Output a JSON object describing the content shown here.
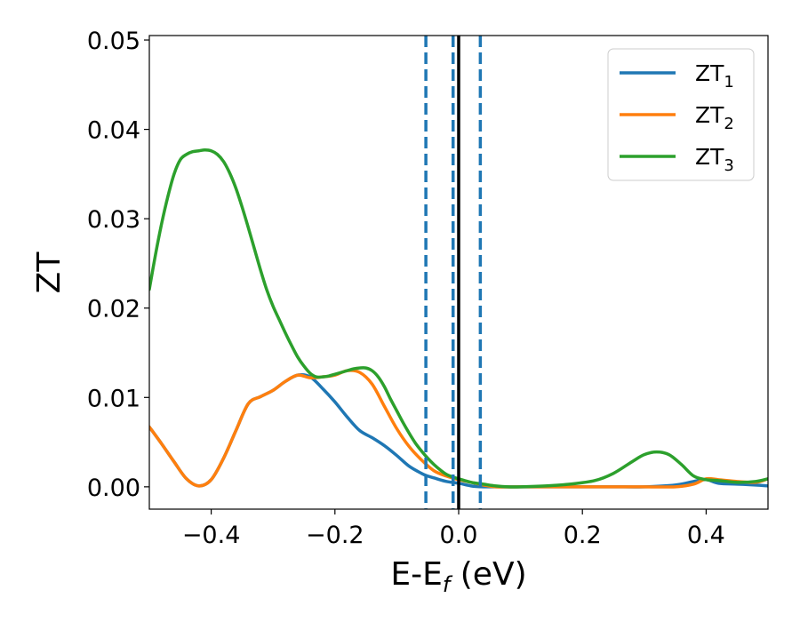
{
  "chart_data": {
    "type": "line",
    "xlabel": {
      "main": "E-E",
      "sub": "f",
      "suffix": " (eV)"
    },
    "ylabel": "ZT",
    "xlim": [
      -0.5,
      0.5
    ],
    "ylim": [
      -0.0025,
      0.0505
    ],
    "xticks": [
      {
        "value": -0.4,
        "label": "−0.4"
      },
      {
        "value": -0.2,
        "label": "−0.2"
      },
      {
        "value": 0.0,
        "label": "0.0"
      },
      {
        "value": 0.2,
        "label": "0.2"
      },
      {
        "value": 0.4,
        "label": "0.4"
      }
    ],
    "yticks": [
      {
        "value": 0.0,
        "label": "0.00"
      },
      {
        "value": 0.01,
        "label": "0.01"
      },
      {
        "value": 0.02,
        "label": "0.02"
      },
      {
        "value": 0.03,
        "label": "0.03"
      },
      {
        "value": 0.04,
        "label": "0.04"
      },
      {
        "value": 0.05,
        "label": "0.05"
      }
    ],
    "grid": false,
    "legend_position": "top-right",
    "vlines": [
      {
        "x": 0.0,
        "style": "solid",
        "color": "#000000"
      },
      {
        "x": -0.053,
        "style": "dashed",
        "color": "#1f77b4"
      },
      {
        "x": -0.009,
        "style": "dashed",
        "color": "#1f77b4"
      },
      {
        "x": 0.035,
        "style": "dashed",
        "color": "#1f77b4"
      }
    ],
    "series": [
      {
        "name": "ZT",
        "sub": "1",
        "color": "#1f77b4",
        "x": [
          -0.5,
          -0.48,
          -0.46,
          -0.44,
          -0.42,
          -0.4,
          -0.38,
          -0.36,
          -0.34,
          -0.32,
          -0.3,
          -0.28,
          -0.26,
          -0.24,
          -0.22,
          -0.2,
          -0.18,
          -0.16,
          -0.14,
          -0.12,
          -0.1,
          -0.08,
          -0.06,
          -0.05,
          -0.04,
          -0.02,
          0.0,
          0.02,
          0.04,
          0.06,
          0.1,
          0.15,
          0.2,
          0.25,
          0.3,
          0.35,
          0.38,
          0.4,
          0.42,
          0.45,
          0.48,
          0.5
        ],
        "y": [
          0.0067,
          0.0048,
          0.0028,
          0.0009,
          0.0001,
          0.0008,
          0.0032,
          0.0063,
          0.0093,
          0.0101,
          0.0108,
          0.0118,
          0.0125,
          0.0123,
          0.011,
          0.0095,
          0.0078,
          0.0063,
          0.0055,
          0.0046,
          0.0035,
          0.0023,
          0.0015,
          0.0012,
          0.001,
          0.0006,
          0.0004,
          0.0001,
          0.0,
          0.0,
          0.0,
          0.0,
          0.0,
          0.0,
          0.0,
          0.0002,
          0.0006,
          0.0008,
          0.0004,
          0.0003,
          0.0002,
          0.0001
        ]
      },
      {
        "name": "ZT",
        "sub": "2",
        "color": "#ff7f0e",
        "x": [
          -0.5,
          -0.48,
          -0.46,
          -0.44,
          -0.42,
          -0.4,
          -0.38,
          -0.36,
          -0.34,
          -0.32,
          -0.3,
          -0.28,
          -0.26,
          -0.24,
          -0.22,
          -0.2,
          -0.18,
          -0.16,
          -0.14,
          -0.12,
          -0.1,
          -0.08,
          -0.06,
          -0.04,
          -0.02,
          0.0,
          0.02,
          0.04,
          0.06,
          0.1,
          0.15,
          0.2,
          0.25,
          0.3,
          0.35,
          0.38,
          0.4,
          0.42,
          0.45,
          0.48,
          0.5
        ],
        "y": [
          0.0067,
          0.0048,
          0.0028,
          0.0009,
          0.0001,
          0.0008,
          0.0032,
          0.0063,
          0.0093,
          0.0101,
          0.0108,
          0.0118,
          0.0125,
          0.0122,
          0.0123,
          0.0125,
          0.013,
          0.0128,
          0.0115,
          0.009,
          0.0065,
          0.0045,
          0.003,
          0.0018,
          0.0012,
          0.0008,
          0.0005,
          0.0002,
          0.0,
          0.0,
          0.0,
          0.0,
          0.0,
          0.0,
          0.0,
          0.0003,
          0.0009,
          0.0008,
          0.0006,
          0.0005,
          0.0009
        ]
      },
      {
        "name": "ZT",
        "sub": "3",
        "color": "#2ca02c",
        "x": [
          -0.5,
          -0.49,
          -0.48,
          -0.47,
          -0.46,
          -0.45,
          -0.44,
          -0.43,
          -0.42,
          -0.41,
          -0.4,
          -0.39,
          -0.38,
          -0.37,
          -0.36,
          -0.35,
          -0.34,
          -0.33,
          -0.32,
          -0.31,
          -0.3,
          -0.29,
          -0.28,
          -0.27,
          -0.26,
          -0.25,
          -0.24,
          -0.23,
          -0.22,
          -0.21,
          -0.2,
          -0.19,
          -0.18,
          -0.17,
          -0.16,
          -0.15,
          -0.14,
          -0.13,
          -0.12,
          -0.11,
          -0.1,
          -0.09,
          -0.08,
          -0.07,
          -0.06,
          -0.05,
          -0.04,
          -0.03,
          -0.02,
          -0.01,
          0.0,
          0.02,
          0.04,
          0.06,
          0.08,
          0.1,
          0.14,
          0.18,
          0.22,
          0.25,
          0.28,
          0.3,
          0.32,
          0.34,
          0.36,
          0.38,
          0.4,
          0.42,
          0.45,
          0.48,
          0.5
        ],
        "y": [
          0.0221,
          0.026,
          0.0295,
          0.0325,
          0.035,
          0.0366,
          0.0372,
          0.0375,
          0.0376,
          0.0377,
          0.0376,
          0.0372,
          0.0364,
          0.0351,
          0.0334,
          0.0313,
          0.029,
          0.0266,
          0.0242,
          0.022,
          0.0202,
          0.0187,
          0.0172,
          0.0158,
          0.0145,
          0.0135,
          0.0127,
          0.0123,
          0.0123,
          0.0124,
          0.0126,
          0.0128,
          0.013,
          0.0132,
          0.0133,
          0.0133,
          0.013,
          0.0123,
          0.0112,
          0.0098,
          0.0085,
          0.0072,
          0.006,
          0.0049,
          0.004,
          0.0032,
          0.0025,
          0.0019,
          0.0014,
          0.0011,
          0.0009,
          0.0005,
          0.0003,
          0.0001,
          0.0,
          0.0,
          0.0001,
          0.0003,
          0.0007,
          0.0015,
          0.0028,
          0.0036,
          0.0039,
          0.0036,
          0.0025,
          0.0012,
          0.0008,
          0.0007,
          0.0005,
          0.0006,
          0.0009
        ]
      }
    ]
  }
}
